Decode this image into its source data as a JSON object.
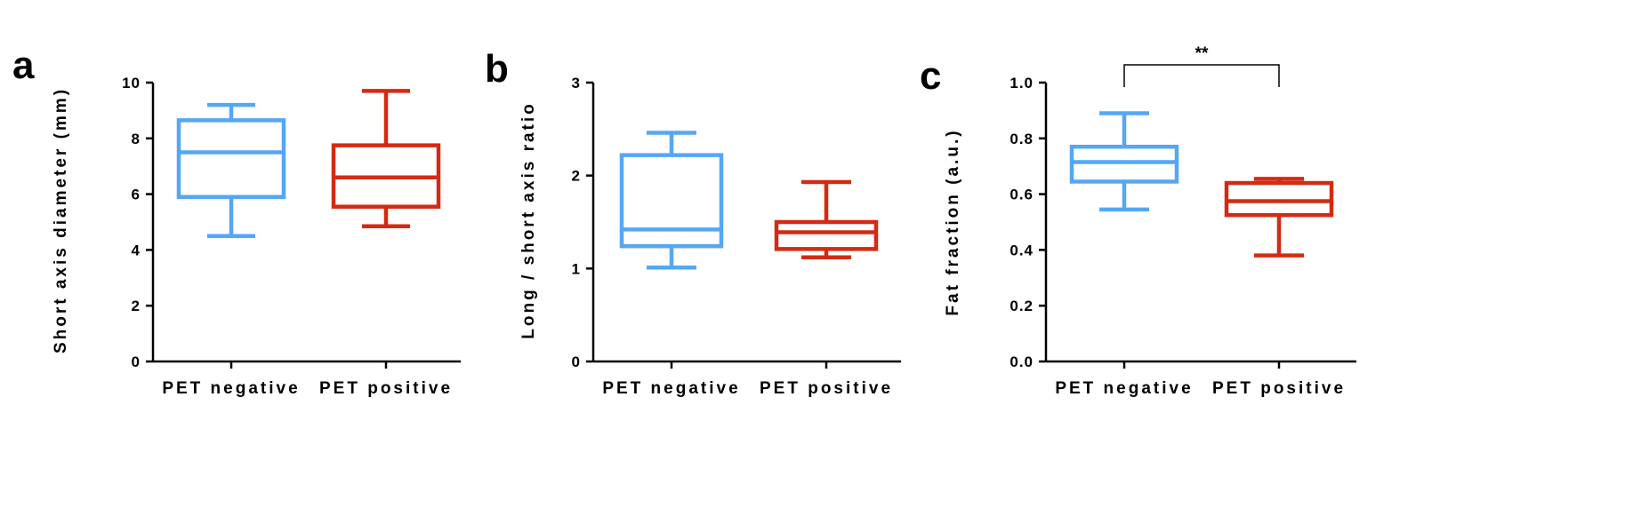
{
  "colors": {
    "pet_negative": "#55a7f5",
    "pet_positive": "#d42a12",
    "axis": "#000000"
  },
  "chart_data": [
    {
      "panel": "a",
      "type": "box",
      "title": "",
      "xlabel": "",
      "ylabel": "Short axis diameter (mm)",
      "categories": [
        "PET negative",
        "PET positive"
      ],
      "ylim": [
        0,
        10
      ],
      "yticks": [
        0,
        2,
        4,
        6,
        8,
        10
      ],
      "ytick_labels": [
        "0",
        "2",
        "4",
        "6",
        "8",
        "10"
      ],
      "series": [
        {
          "name": "PET negative",
          "min": 4.5,
          "q1": 5.9,
          "median": 7.5,
          "q3": 8.65,
          "max": 9.2
        },
        {
          "name": "PET positive",
          "min": 4.85,
          "q1": 5.55,
          "median": 6.6,
          "q3": 7.75,
          "max": 9.7
        }
      ]
    },
    {
      "panel": "b",
      "type": "box",
      "title": "",
      "xlabel": "",
      "ylabel": "Long / short axis ratio",
      "categories": [
        "PET negative",
        "PET positive"
      ],
      "ylim": [
        0,
        3
      ],
      "yticks": [
        0,
        1,
        2,
        3
      ],
      "ytick_labels": [
        "0",
        "1",
        "2",
        "3"
      ],
      "series": [
        {
          "name": "PET negative",
          "min": 1.01,
          "q1": 1.24,
          "median": 1.42,
          "q3": 2.22,
          "max": 2.46
        },
        {
          "name": "PET positive",
          "min": 1.12,
          "q1": 1.21,
          "median": 1.39,
          "q3": 1.5,
          "max": 1.93
        }
      ]
    },
    {
      "panel": "c",
      "type": "box",
      "title": "",
      "xlabel": "",
      "ylabel": "Fat fraction (a.u.)",
      "categories": [
        "PET negative",
        "PET positive"
      ],
      "ylim": [
        0,
        1.0
      ],
      "yticks": [
        0,
        0.2,
        0.4,
        0.6,
        0.8,
        1.0
      ],
      "ytick_labels": [
        "0.0",
        "0.2",
        "0.4",
        "0.6",
        "0.8",
        "1.0"
      ],
      "series": [
        {
          "name": "PET negative",
          "min": 0.545,
          "q1": 0.645,
          "median": 0.715,
          "q3": 0.77,
          "max": 0.89
        },
        {
          "name": "PET positive",
          "min": 0.38,
          "q1": 0.525,
          "median": 0.575,
          "q3": 0.64,
          "max": 0.655
        }
      ],
      "annotation": {
        "text": "**",
        "between": [
          "PET negative",
          "PET positive"
        ]
      }
    }
  ]
}
